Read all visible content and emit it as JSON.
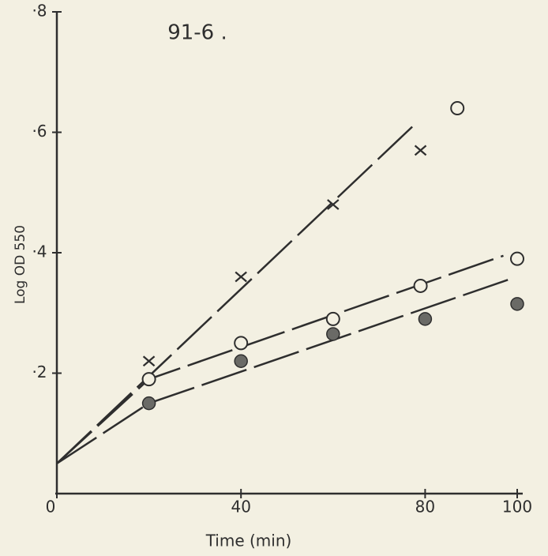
{
  "chart_data": {
    "type": "scatter",
    "title": "91-6 .",
    "x_label": "Time (min)",
    "y_label": "Log OD 550",
    "xlim": [
      0,
      100
    ],
    "ylim": [
      0,
      0.8
    ],
    "xticks": [
      0,
      40,
      80,
      100
    ],
    "yticks": [
      {
        "value": 0.2,
        "label": "·2"
      },
      {
        "value": 0.4,
        "label": "·4"
      },
      {
        "value": 0.6,
        "label": "·6"
      },
      {
        "value": 0.8,
        "label": "·8"
      }
    ],
    "color": "#2e2e2e",
    "series": [
      {
        "marker": "x",
        "x": [
          20,
          40,
          60,
          79
        ],
        "values": [
          0.22,
          0.36,
          0.48,
          0.57
        ]
      },
      {
        "marker": "open",
        "x": [
          20,
          40,
          60,
          79,
          100,
          87
        ],
        "values": [
          0.19,
          0.25,
          0.29,
          0.345,
          0.39,
          0.64
        ]
      },
      {
        "marker": "filled",
        "x": [
          20,
          40,
          60,
          80,
          100
        ],
        "values": [
          0.15,
          0.22,
          0.265,
          0.29,
          0.315
        ]
      },
      {
        "marker": "line",
        "x": [
          0,
          78
        ],
        "values": [
          0.05,
          0.615
        ]
      },
      {
        "marker": "line",
        "x": [
          0,
          20,
          97
        ],
        "values": [
          0.05,
          0.19,
          0.395
        ]
      },
      {
        "marker": "line",
        "x": [
          0,
          20,
          98
        ],
        "values": [
          0.05,
          0.15,
          0.355
        ]
      }
    ]
  }
}
